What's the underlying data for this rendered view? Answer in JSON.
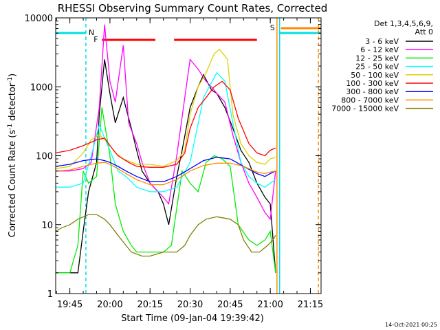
{
  "chart_data": {
    "type": "line",
    "title": "RHESSI Observing Summary Count Rates, Corrected",
    "xlabel": "Start Time (09-Jan-04 19:39:42)",
    "ylabel": "Corrected Count Rate (s",
    "ylabel_sup1": "-1",
    "ylabel_mid": " detector",
    "ylabel_sup2": "-1",
    "ylabel_end": ")",
    "yscale": "log",
    "ylim": [
      1,
      10000
    ],
    "xlim": [
      "19:39:42",
      "21:19:00"
    ],
    "x_ticks": [
      "19:45",
      "20:00",
      "20:15",
      "20:30",
      "20:45",
      "21:00",
      "21:15"
    ],
    "y_ticks": [
      "1",
      "10",
      "100",
      "1000",
      "10000"
    ],
    "footer_date": "14-Oct-2021 00:25",
    "legend": {
      "header_line1": "Det 1,3,4,5,6,9,",
      "header_line2": "Att 0",
      "placement": "right"
    },
    "flags": {
      "flare": {
        "label": "F",
        "color": "#ff0000",
        "intervals": [
          [
            "19:57:00",
            "20:17:00"
          ],
          [
            "20:24:00",
            "20:55:00"
          ]
        ]
      },
      "night": {
        "label": "N",
        "color": "#00e0e0",
        "cyan_bars": [
          [
            "19:39:42",
            "19:51:00"
          ],
          [
            "21:03:30",
            "21:19:00"
          ]
        ]
      },
      "saa": {
        "label": "S",
        "color": "#ff8c00",
        "intervals": [
          [
            "21:03:00",
            "21:19:00"
          ]
        ]
      }
    },
    "vlines": [
      {
        "time": "19:51:00",
        "color": "#00e0e0",
        "style": "dashed"
      },
      {
        "time": "21:03:30",
        "color": "#00e0e0",
        "style": "solid"
      },
      {
        "time": "21:02:30",
        "color": "#ff8c00",
        "style": "solid"
      },
      {
        "time": "21:18:00",
        "color": "#ff8c00",
        "style": "dashed"
      }
    ],
    "series": [
      {
        "name": "3 - 6 keV",
        "color": "#000000",
        "x": [
          "19:39:42",
          "19:48",
          "19:50",
          "19:52",
          "19:55",
          "19:56",
          "19:58",
          "20:00",
          "20:02",
          "20:05",
          "20:08",
          "20:10",
          "20:12",
          "20:15",
          "20:18",
          "20:20",
          "20:22",
          "20:25",
          "20:27",
          "20:30",
          "20:33",
          "20:35",
          "20:38",
          "20:40",
          "20:43",
          "20:46",
          "20:49",
          "20:52",
          "20:55",
          "20:58",
          "21:00",
          "21:02"
        ],
        "y": [
          2,
          2,
          8,
          30,
          80,
          400,
          2500,
          800,
          300,
          700,
          250,
          120,
          60,
          40,
          30,
          20,
          10,
          50,
          120,
          500,
          1000,
          1500,
          900,
          800,
          500,
          250,
          120,
          80,
          40,
          25,
          20,
          2
        ]
      },
      {
        "name": "6 - 12 keV",
        "color": "#ff00ff",
        "x": [
          "19:39:42",
          "19:45",
          "19:50",
          "19:53",
          "19:56",
          "19:58",
          "20:00",
          "20:02",
          "20:05",
          "20:07",
          "20:10",
          "20:12",
          "20:15",
          "20:18",
          "20:20",
          "20:22",
          "20:25",
          "20:28",
          "20:30",
          "20:33",
          "20:36",
          "20:38",
          "20:40",
          "20:43",
          "20:46",
          "20:49",
          "20:52",
          "20:55",
          "20:58",
          "21:00",
          "21:02"
        ],
        "y": [
          60,
          60,
          65,
          80,
          500,
          8000,
          1200,
          600,
          4000,
          300,
          150,
          80,
          40,
          30,
          25,
          20,
          100,
          700,
          2500,
          1800,
          1200,
          1000,
          800,
          600,
          200,
          80,
          40,
          25,
          15,
          12,
          60
        ]
      },
      {
        "name": "12 - 25 keV",
        "color": "#00ee00",
        "x": [
          "19:39:42",
          "19:41",
          "19:45",
          "19:48",
          "19:50",
          "19:52",
          "19:55",
          "19:57",
          "20:00",
          "20:02",
          "20:05",
          "20:08",
          "20:10",
          "20:15",
          "20:20",
          "20:23",
          "20:27",
          "20:30",
          "20:33",
          "20:36",
          "20:39",
          "20:42",
          "20:45",
          "20:48",
          "20:52",
          "20:55",
          "20:58",
          "21:00",
          "21:02"
        ],
        "y": [
          2,
          2,
          2,
          5,
          60,
          40,
          50,
          500,
          100,
          20,
          8,
          5,
          4,
          4,
          4,
          5,
          60,
          40,
          30,
          80,
          100,
          90,
          70,
          10,
          6,
          5,
          6,
          8,
          2
        ]
      },
      {
        "name": "25 - 50 keV",
        "color": "#00ffff",
        "x": [
          "19:39:42",
          "19:45",
          "19:50",
          "19:53",
          "19:56",
          "19:58",
          "20:00",
          "20:03",
          "20:06",
          "20:10",
          "20:15",
          "20:20",
          "20:25",
          "20:30",
          "20:35",
          "20:40",
          "20:43",
          "20:46",
          "20:49",
          "20:52",
          "20:55",
          "20:58",
          "21:00",
          "21:02"
        ],
        "y": [
          35,
          35,
          40,
          100,
          280,
          180,
          120,
          60,
          50,
          35,
          30,
          30,
          35,
          80,
          700,
          1600,
          1200,
          300,
          80,
          50,
          40,
          35,
          40,
          45
        ]
      },
      {
        "name": "50 - 100 keV",
        "color": "#e0d000",
        "x": [
          "19:39:42",
          "19:45",
          "19:50",
          "19:53",
          "19:56",
          "19:59",
          "20:02",
          "20:05",
          "20:10",
          "20:15",
          "20:20",
          "20:25",
          "20:28",
          "20:30",
          "20:33",
          "20:36",
          "20:39",
          "20:41",
          "20:44",
          "20:46",
          "20:49",
          "20:52",
          "20:55",
          "20:58",
          "21:00",
          "21:02"
        ],
        "y": [
          65,
          70,
          110,
          170,
          200,
          160,
          110,
          90,
          75,
          75,
          70,
          85,
          120,
          400,
          1000,
          1600,
          3000,
          3500,
          2500,
          400,
          150,
          100,
          80,
          75,
          90,
          95
        ]
      },
      {
        "name": "100 - 300 keV",
        "color": "#ff0000",
        "x": [
          "19:39:42",
          "19:45",
          "19:50",
          "19:55",
          "19:58",
          "20:00",
          "20:03",
          "20:07",
          "20:10",
          "20:15",
          "20:20",
          "20:25",
          "20:28",
          "20:30",
          "20:33",
          "20:36",
          "20:39",
          "20:42",
          "20:45",
          "20:48",
          "20:52",
          "20:55",
          "20:58",
          "21:00",
          "21:02"
        ],
        "y": [
          110,
          120,
          140,
          170,
          180,
          140,
          100,
          80,
          70,
          68,
          68,
          75,
          110,
          250,
          500,
          700,
          1000,
          1200,
          900,
          350,
          150,
          110,
          100,
          120,
          130
        ]
      },
      {
        "name": "300 - 800 keV",
        "color": "#0000ff",
        "x": [
          "19:39:42",
          "19:45",
          "19:50",
          "19:55",
          "19:58",
          "20:00",
          "20:03",
          "20:06",
          "20:10",
          "20:15",
          "20:20",
          "20:25",
          "20:30",
          "20:35",
          "20:40",
          "20:45",
          "20:50",
          "20:55",
          "20:58",
          "21:00",
          "21:02"
        ],
        "y": [
          70,
          75,
          85,
          90,
          85,
          80,
          70,
          60,
          50,
          42,
          42,
          50,
          65,
          85,
          95,
          90,
          70,
          55,
          50,
          55,
          60
        ]
      },
      {
        "name": "800 - 7000 keV",
        "color": "#ff8c00",
        "x": [
          "19:39:42",
          "19:45",
          "19:50",
          "19:55",
          "19:58",
          "20:00",
          "20:03",
          "20:06",
          "20:10",
          "20:15",
          "20:20",
          "20:25",
          "20:30",
          "20:35",
          "20:40",
          "20:45",
          "20:50",
          "20:55",
          "20:58",
          "21:00",
          "21:02"
        ],
        "y": [
          60,
          62,
          70,
          78,
          80,
          75,
          65,
          55,
          45,
          38,
          38,
          45,
          60,
          72,
          78,
          78,
          70,
          58,
          55,
          58,
          60
        ]
      },
      {
        "name": "7000 - 15000 keV",
        "color": "#808000",
        "x": [
          "19:39:42",
          "19:42",
          "19:45",
          "19:48",
          "19:52",
          "19:55",
          "19:58",
          "20:00",
          "20:03",
          "20:06",
          "20:08",
          "20:12",
          "20:15",
          "20:20",
          "20:25",
          "20:28",
          "20:30",
          "20:33",
          "20:36",
          "20:40",
          "20:45",
          "20:48",
          "20:50",
          "20:53",
          "20:56",
          "20:59",
          "21:01",
          "21:02"
        ],
        "y": [
          8,
          9,
          10,
          12,
          14,
          14,
          12,
          10,
          7,
          5,
          4,
          3.5,
          3.5,
          4,
          4,
          5,
          7,
          10,
          12,
          13,
          12,
          10,
          6,
          4,
          4,
          5,
          6,
          7
        ]
      }
    ]
  }
}
